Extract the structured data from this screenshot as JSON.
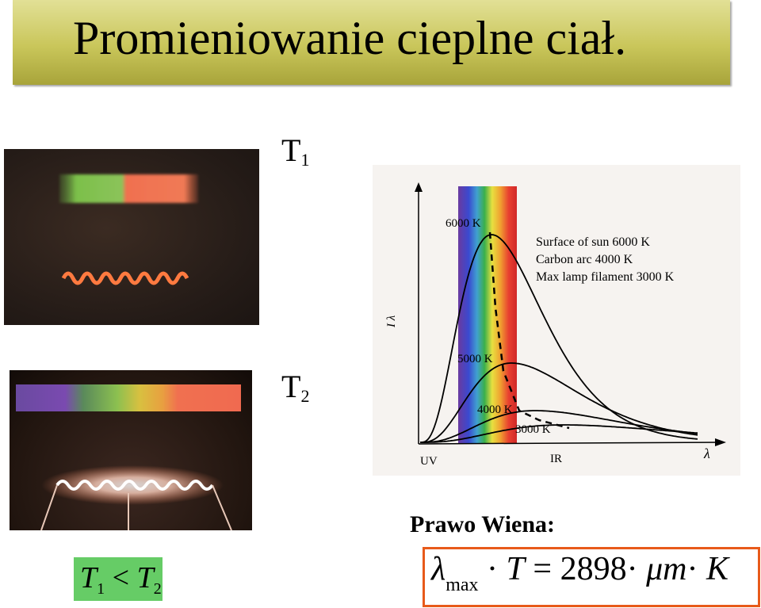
{
  "slide": {
    "title": "Promieniowanie cieplne ciał.",
    "t1_label": {
      "base": "T",
      "sub": "1"
    },
    "t2_label": {
      "base": "T",
      "sub": "2"
    },
    "inequality": {
      "left": "T",
      "left_sub": "1",
      "op": "<",
      "right": "T",
      "right_sub": "2"
    },
    "law_label": "Prawo Wiena:",
    "formula": {
      "lambda": "λ",
      "sub": "max",
      "dot1": "·",
      "T": "T",
      "eq": "=",
      "value": "2898",
      "dot2": "·",
      "unit_mu_m": "μm",
      "dot3": "·",
      "unit_K": "K"
    }
  },
  "chart_data": {
    "type": "line",
    "title": "",
    "xlabel": "λ",
    "ylabel": "I λ",
    "x_annotations": [
      "UV",
      "IR"
    ],
    "legend": [
      "Surface of sun 6000 K",
      "Carbon arc 4000 K",
      "Max lamp filament 3000 K"
    ],
    "series": [
      {
        "name": "6000 K",
        "label": "6000 K"
      },
      {
        "name": "5000 K",
        "label": "5000 K"
      },
      {
        "name": "4000 K",
        "label": "4000 K"
      },
      {
        "name": "3000 K",
        "label": "3000 K"
      }
    ],
    "wien_line": "dashed",
    "visible_spectrum_band": true
  },
  "colors": {
    "title_bar": "#c9c65a",
    "inequality_box": "#66cc66",
    "formula_border": "#e85a1a"
  }
}
